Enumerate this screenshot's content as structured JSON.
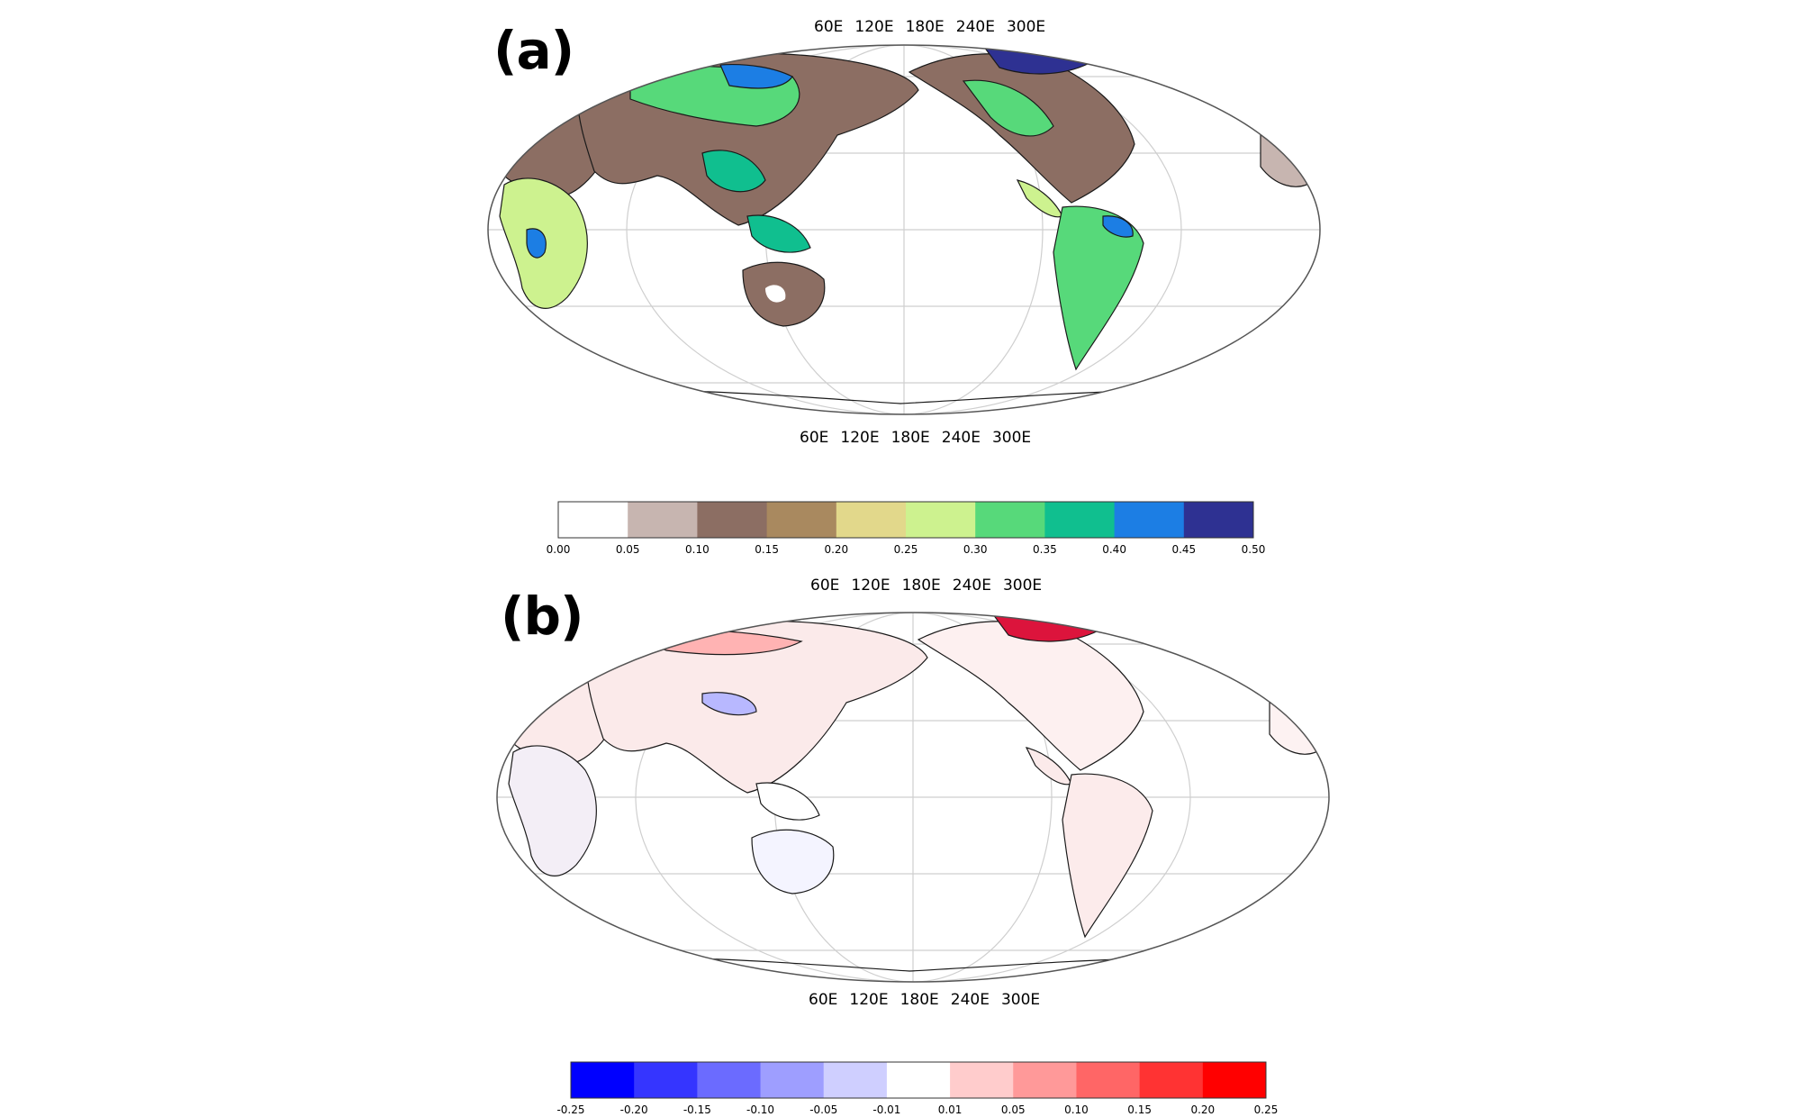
{
  "panels": [
    {
      "label": "(a)",
      "lon_labels_top": [
        "60E",
        "120E",
        "180E",
        "240E",
        "300E"
      ],
      "lon_labels_bottom": [
        "60E",
        "120E",
        "180E",
        "240E",
        "300E"
      ],
      "colorbar": {
        "ticks": [
          "0.00",
          "0.05",
          "0.10",
          "0.15",
          "0.20",
          "0.25",
          "0.30",
          "0.35",
          "0.40",
          "0.45",
          "0.50"
        ],
        "colors": [
          "#ffffff",
          "#c7b5b0",
          "#8c6e63",
          "#a9895f",
          "#e2d88b",
          "#cdf28f",
          "#57d97a",
          "#10bf8f",
          "#1c7ee4",
          "#2e3192"
        ]
      }
    },
    {
      "label": "(b)",
      "lon_labels_top": [
        "60E",
        "120E",
        "180E",
        "240E",
        "300E"
      ],
      "lon_labels_bottom": [
        "60E",
        "120E",
        "180E",
        "240E",
        "300E"
      ],
      "colorbar": {
        "ticks": [
          "-0.25",
          "-0.20",
          "-0.15",
          "-0.10",
          "-0.05",
          "-0.01",
          "0.01",
          "0.05",
          "0.10",
          "0.15",
          "0.20",
          "0.25"
        ],
        "colors": [
          "#0000ff",
          "#3535ff",
          "#6b6bff",
          "#9e9eff",
          "#cfcfff",
          "#ffffff",
          "#ffcccc",
          "#ff9999",
          "#ff6666",
          "#ff3333",
          "#ff0000"
        ]
      }
    }
  ]
}
